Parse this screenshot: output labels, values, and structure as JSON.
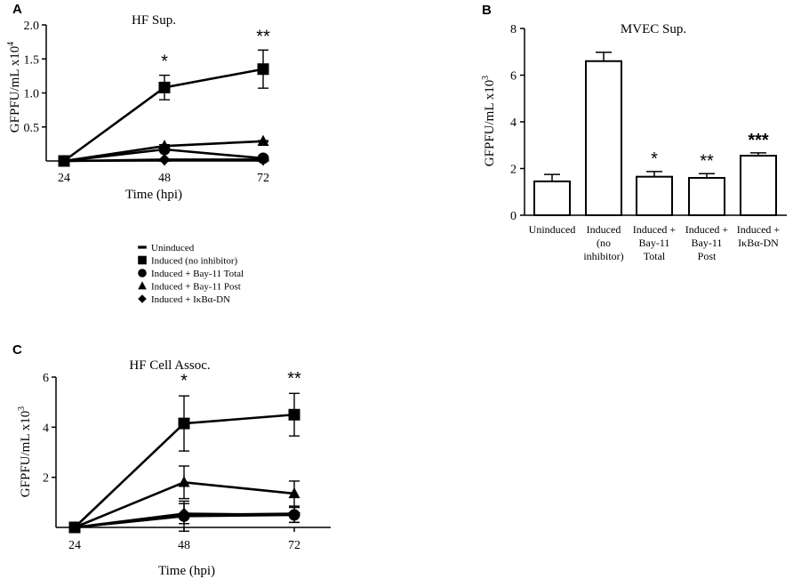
{
  "chart_data": [
    {
      "id": "A",
      "panel_label": "A",
      "type": "line",
      "title": "HF Sup.",
      "xlabel": "Time (hpi)",
      "ylabel": "GFPFU/mL x10",
      "ylabel_exp": "4",
      "categories": [
        "24",
        "48",
        "72"
      ],
      "ytick_labels": [
        "0.5",
        "1.0",
        "1.5",
        "2.0"
      ],
      "ytick_values": [
        0.5,
        1.0,
        1.5,
        2.0
      ],
      "ylim": [
        0,
        2.0
      ],
      "series": [
        {
          "name": "Induced (no inhibitor)",
          "marker": "square",
          "values": [
            0,
            1.08,
            1.35
          ],
          "err": [
            0,
            0.18,
            0.28
          ]
        },
        {
          "name": "Induced + Bay-11 Post",
          "marker": "triangle",
          "values": [
            0,
            0.22,
            0.29
          ],
          "err": [
            0,
            0.02,
            0.01
          ]
        },
        {
          "name": "Induced + Bay-11 Total",
          "marker": "circle",
          "values": [
            0,
            0.17,
            0.04
          ],
          "err": [
            0,
            0,
            0.01
          ]
        },
        {
          "name": "Induced + IκBα-DN",
          "marker": "diamond",
          "values": [
            0,
            0.02,
            0.02
          ],
          "err": [
            0,
            0,
            0
          ]
        },
        {
          "name": "Uninduced",
          "marker": "dash",
          "values": [
            0,
            0.01,
            0.01
          ],
          "err": [
            0,
            0,
            0
          ]
        }
      ],
      "annotations": [
        {
          "category": "48",
          "text": "*",
          "above_value": 1.26
        },
        {
          "category": "72",
          "text": "**",
          "above_value": 1.63
        }
      ]
    },
    {
      "id": "B",
      "panel_label": "B",
      "type": "bar",
      "title": "MVEC Sup.",
      "xlabel": "",
      "ylabel": "GFPFU/mL x10",
      "ylabel_exp": "3",
      "categories": [
        [
          "Uninduced"
        ],
        [
          "Induced",
          "(no",
          "inhibitor)"
        ],
        [
          "Induced +",
          "Bay-11",
          "Total"
        ],
        [
          "Induced +",
          "Bay-11",
          "Post"
        ],
        [
          "Induced +",
          "IκBα-DN"
        ]
      ],
      "values": [
        1.45,
        6.6,
        1.65,
        1.6,
        2.55
      ],
      "err": [
        0.3,
        0.38,
        0.22,
        0.18,
        0.12
      ],
      "ytick_labels": [
        "0",
        "2",
        "4",
        "6",
        "8"
      ],
      "ytick_values": [
        0,
        2,
        4,
        6,
        8
      ],
      "ylim": [
        0,
        8
      ],
      "annotations": [
        {
          "index": 2,
          "text": "*",
          "bold": false
        },
        {
          "index": 3,
          "text": "**",
          "bold": false
        },
        {
          "index": 4,
          "text": "***",
          "bold": true
        }
      ]
    },
    {
      "id": "C",
      "panel_label": "C",
      "type": "line",
      "title": "HF Cell Assoc.",
      "xlabel": "Time (hpi)",
      "ylabel": "GFPFU/mL x10",
      "ylabel_exp": "3",
      "categories": [
        "24",
        "48",
        "72"
      ],
      "ytick_labels": [
        "2",
        "4",
        "6"
      ],
      "ytick_values": [
        2,
        4,
        6
      ],
      "ylim": [
        0,
        6
      ],
      "series": [
        {
          "name": "Induced (no inhibitor)",
          "marker": "square",
          "values": [
            0,
            4.15,
            4.5
          ],
          "err": [
            0,
            1.1,
            0.85
          ]
        },
        {
          "name": "Induced + Bay-11 Post",
          "marker": "triangle",
          "values": [
            0,
            1.8,
            1.35
          ],
          "err": [
            0,
            0.65,
            0.5
          ]
        },
        {
          "name": "Induced + Bay-11 Total",
          "marker": "circle",
          "values": [
            0,
            0.45,
            0.5
          ],
          "err": [
            0,
            0.6,
            0.3
          ]
        },
        {
          "name": "Induced + IκBα-DN",
          "marker": "diamond",
          "values": [
            0,
            0.55,
            0.5
          ],
          "err": [
            0,
            0.4,
            0.3
          ]
        },
        {
          "name": "Uninduced",
          "marker": "dash",
          "values": [
            0,
            0.5,
            0.55
          ],
          "err": [
            0,
            0,
            0
          ]
        }
      ],
      "annotations": [
        {
          "category": "48",
          "text": "*",
          "above_value": 5.3
        },
        {
          "category": "72",
          "text": "**",
          "above_value": 5.4
        }
      ]
    }
  ],
  "legend": {
    "entries": [
      {
        "marker": "dash",
        "label": "Uninduced"
      },
      {
        "marker": "square",
        "label": "Induced (no inhibitor)"
      },
      {
        "marker": "circle",
        "label": "Induced + Bay-11 Total"
      },
      {
        "marker": "triangle",
        "label": "Induced + Bay-11 Post"
      },
      {
        "marker": "diamond",
        "label": "Induced + IκBα-DN"
      }
    ]
  },
  "colors": {
    "ink": "#000000",
    "background": "#ffffff",
    "bar_fill": "#ffffff"
  }
}
